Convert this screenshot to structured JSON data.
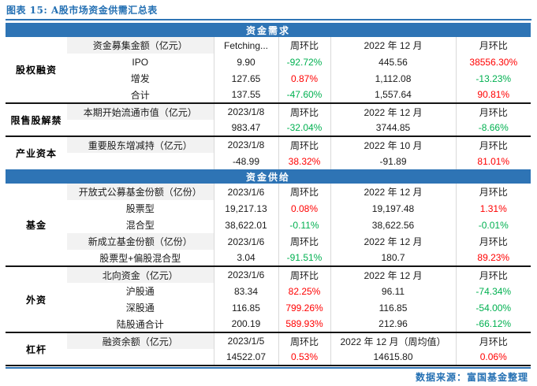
{
  "title": "图表 15: A股市场资金供需汇总表",
  "footer": {
    "source": "数据来源：富国基金整理"
  },
  "colors": {
    "accent_blue": "#2E74B5",
    "up_red": "#FF0000",
    "down_green": "#00B050",
    "subheader_shade": "#F2F2F2"
  },
  "table": {
    "demand_bar": "资金需求",
    "supply_bar": "资金供给",
    "sections": [
      {
        "category": "股权融资",
        "rows": [
          {
            "item": "资金募集金额（亿元）",
            "value": "Fetching...",
            "wow": "周环比",
            "month": "2022 年 12 月",
            "mom": "月环比"
          },
          {
            "item": "IPO",
            "value": "9.90",
            "wow": "-92.72%",
            "month": "445.56",
            "mom": "38556.30%"
          },
          {
            "item": "增发",
            "value": "127.65",
            "wow": "0.87%",
            "month": "1,112.08",
            "mom": "-13.23%"
          },
          {
            "item": "合计",
            "value": "137.55",
            "wow": "-47.60%",
            "month": "1,557.64",
            "mom": "90.81%"
          }
        ]
      },
      {
        "category": "限售股解禁",
        "rows": [
          {
            "item": "本期开始流通市值（亿元）",
            "value": "2023/1/8",
            "wow": "周环比",
            "month": "2022 年 12 月",
            "mom": "月环比"
          },
          {
            "item": "",
            "value": "983.47",
            "wow": "-32.04%",
            "month": "3744.85",
            "mom": "-8.66%"
          }
        ]
      },
      {
        "category": "产业资本",
        "rows": [
          {
            "item": "重要股东增减持（亿元）",
            "value": "2023/1/8",
            "wow": "周环比",
            "month": "2022 年 10 月",
            "mom": "月环比"
          },
          {
            "item": "",
            "value": "-48.99",
            "wow": "38.32%",
            "month": "-91.89",
            "mom": "81.01%"
          }
        ]
      },
      {
        "category": "基金",
        "rows": [
          {
            "item": "开放式公募基金份额（亿份）",
            "value": "2023/1/6",
            "wow": "周环比",
            "month": "2022 年 12 月",
            "mom": "月环比"
          },
          {
            "item": "股票型",
            "value": "19,217.13",
            "wow": "0.08%",
            "month": "19,197.48",
            "mom": "1.31%"
          },
          {
            "item": "混合型",
            "value": "38,622.01",
            "wow": "-0.11%",
            "month": "38,622.56",
            "mom": "-0.01%"
          },
          {
            "item": "新成立基金份额（亿份）",
            "value": "2023/1/6",
            "wow": "周环比",
            "month": "2022 年 12 月",
            "mom": "月环比"
          },
          {
            "item": "股票型+偏股混合型",
            "value": "3.04",
            "wow": "-91.51%",
            "month": "180.7",
            "mom": "89.23%"
          }
        ]
      },
      {
        "category": "外资",
        "rows": [
          {
            "item": "北向资金（亿元）",
            "value": "2023/1/6",
            "wow": "周环比",
            "month": "2022 年 12 月",
            "mom": "月环比"
          },
          {
            "item": "沪股通",
            "value": "83.34",
            "wow": "82.25%",
            "month": "96.11",
            "mom": "-74.34%"
          },
          {
            "item": "深股通",
            "value": "116.85",
            "wow": "799.26%",
            "month": "116.85",
            "mom": "-54.00%"
          },
          {
            "item": "陆股通合计",
            "value": "200.19",
            "wow": "589.93%",
            "month": "212.96",
            "mom": "-66.12%"
          }
        ]
      },
      {
        "category": "杠杆",
        "rows": [
          {
            "item": "融资余额（亿元）",
            "value": "2023/1/5",
            "wow": "周环比",
            "month": "2022 年 12 月（周均值）",
            "mom": "月环比"
          },
          {
            "item": "",
            "value": "14522.07",
            "wow": "0.53%",
            "month": "14615.80",
            "mom": "0.06%"
          }
        ]
      }
    ]
  }
}
